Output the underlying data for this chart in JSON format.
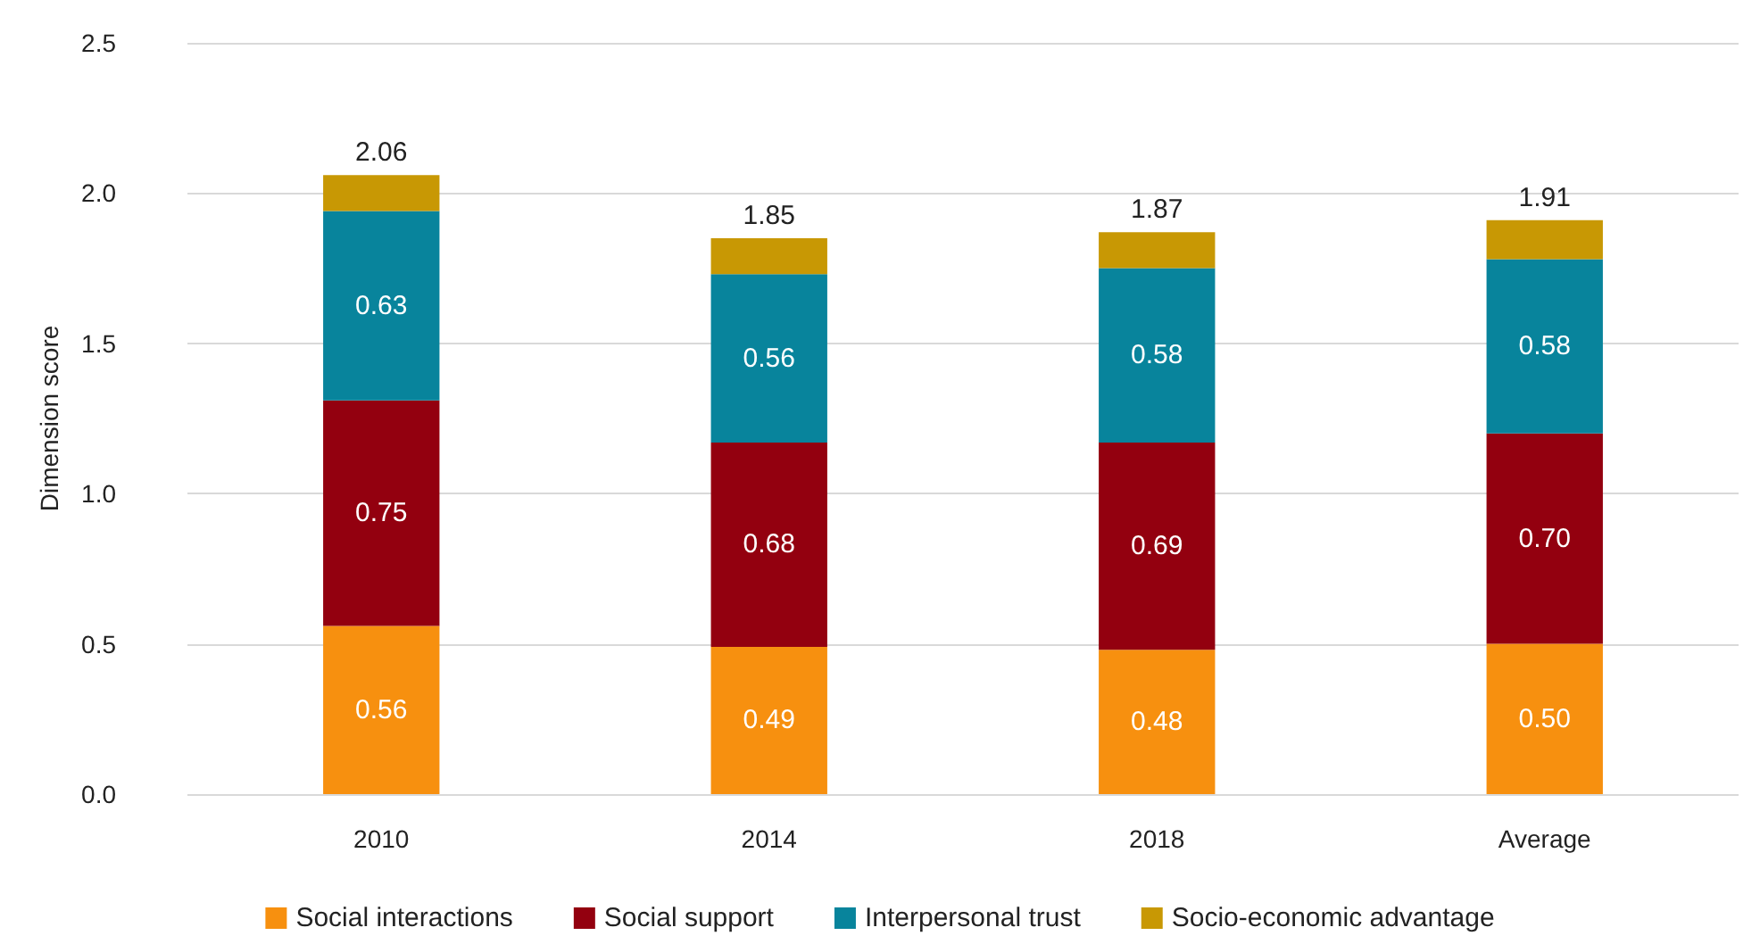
{
  "chart_data": {
    "type": "bar",
    "stacked": true,
    "ylabel": "Dimension score",
    "categories": [
      "2010",
      "2014",
      "2018",
      "Average"
    ],
    "series": [
      {
        "name": "Social interactions",
        "color": "#f7900f",
        "values": [
          0.56,
          0.49,
          0.48,
          0.5
        ],
        "value_labels": [
          "0.56",
          "0.49",
          "0.48",
          "0.50"
        ]
      },
      {
        "name": "Social support",
        "color": "#93000f",
        "values": [
          0.75,
          0.68,
          0.69,
          0.7
        ],
        "value_labels": [
          "0.75",
          "0.68",
          "0.69",
          "0.70"
        ]
      },
      {
        "name": "Interpersonal trust",
        "color": "#08849c",
        "values": [
          0.63,
          0.56,
          0.58,
          0.58
        ],
        "value_labels": [
          "0.63",
          "0.56",
          "0.58",
          "0.58"
        ]
      },
      {
        "name": "Socio-economic advantage",
        "color": "#c89804",
        "values": [
          0.12,
          0.12,
          0.12,
          0.13
        ]
      }
    ],
    "totals": [
      "2.06",
      "1.85",
      "1.87",
      "1.91"
    ],
    "ylim": [
      0,
      2.5
    ],
    "yticks": [
      {
        "value": 0,
        "label": "0.0"
      },
      0.5,
      {
        "value": 1,
        "label": "1.0"
      },
      1.5,
      {
        "value": 2,
        "label": "2.0"
      },
      2.5
    ],
    "grid": "y",
    "legend": "bottom"
  }
}
